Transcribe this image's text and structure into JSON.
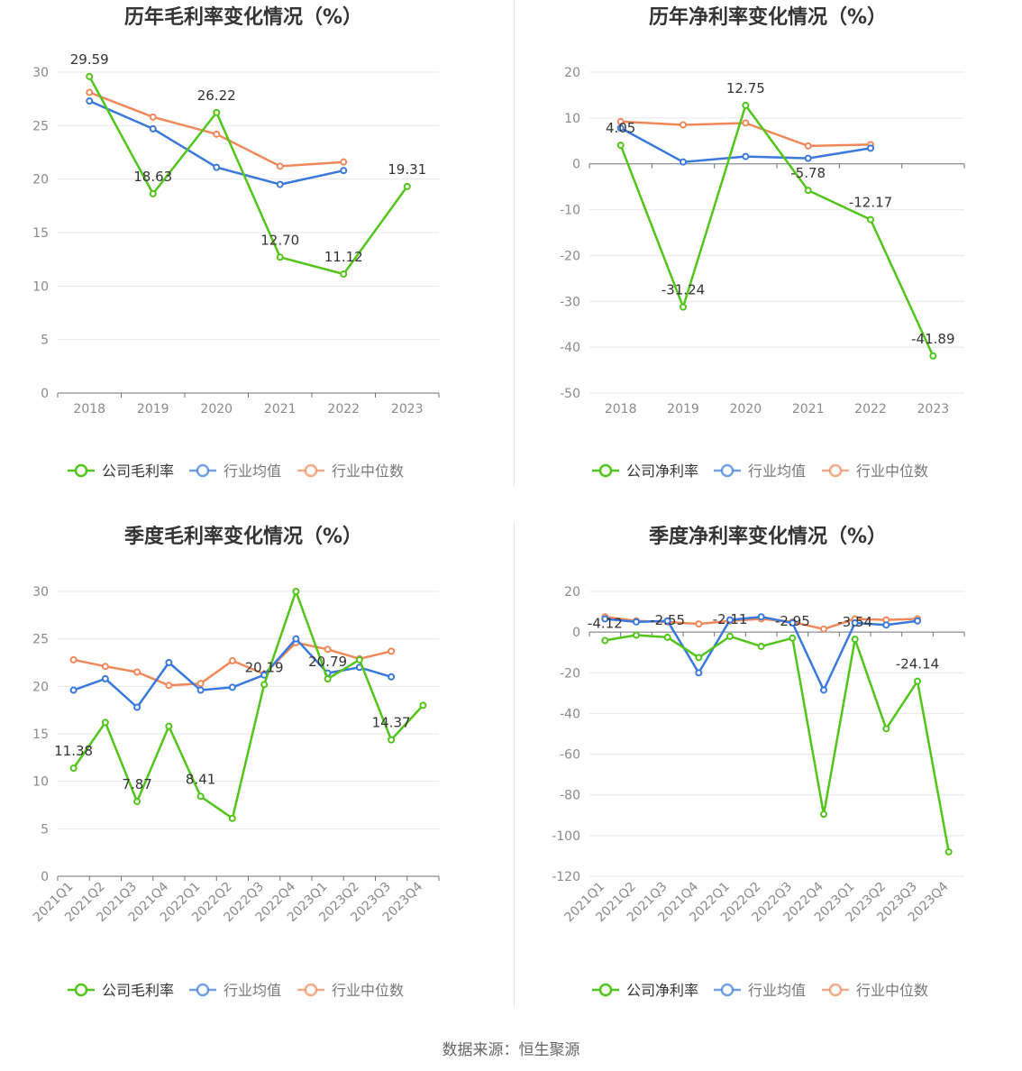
{
  "footer": {
    "source_text": "数据来源：恒生聚源"
  },
  "colors": {
    "company": "#52c41a",
    "industry_avg": "#3a78dc",
    "industry_median": "#f0885a"
  },
  "chart_data": [
    {
      "type": "line",
      "title": "历年毛利率变化情况（%）",
      "categories": [
        "2018",
        "2019",
        "2020",
        "2021",
        "2022",
        "2023"
      ],
      "ylim": [
        0,
        30
      ],
      "yticks": [
        0,
        5,
        10,
        15,
        20,
        25,
        30
      ],
      "rotate_x_labels": false,
      "legend_position": "bottom",
      "series": [
        {
          "name": "公司毛利率",
          "values": [
            29.59,
            18.63,
            26.22,
            12.7,
            11.12,
            19.31
          ],
          "labels": [
            "29.59",
            "18.63",
            "26.22",
            "12.70",
            "11.12",
            "19.31"
          ]
        },
        {
          "name": "行业均值",
          "values": [
            27.3,
            24.7,
            21.1,
            19.5,
            20.8,
            null
          ]
        },
        {
          "name": "行业中位数",
          "values": [
            28.1,
            25.8,
            24.2,
            21.2,
            21.6,
            null
          ]
        }
      ]
    },
    {
      "type": "line",
      "title": "历年净利率变化情况（%）",
      "categories": [
        "2018",
        "2019",
        "2020",
        "2021",
        "2022",
        "2023"
      ],
      "ylim": [
        -50,
        20
      ],
      "yticks": [
        -50,
        -40,
        -30,
        -20,
        -10,
        0,
        10,
        20
      ],
      "rotate_x_labels": false,
      "legend_position": "bottom",
      "series": [
        {
          "name": "公司净利率",
          "values": [
            4.05,
            -31.24,
            12.75,
            -5.78,
            -12.17,
            -41.89
          ],
          "labels": [
            "4.05",
            "-31.24",
            "12.75",
            "-5.78",
            "-12.17",
            "-41.89"
          ]
        },
        {
          "name": "行业均值",
          "values": [
            7.8,
            0.4,
            1.6,
            1.2,
            3.4,
            null
          ]
        },
        {
          "name": "行业中位数",
          "values": [
            9.2,
            8.5,
            8.9,
            3.9,
            4.2,
            null
          ]
        }
      ]
    },
    {
      "type": "line",
      "title": "季度毛利率变化情况（%）",
      "categories": [
        "2021Q1",
        "2021Q2",
        "2021Q3",
        "2021Q4",
        "2022Q1",
        "2022Q2",
        "2022Q3",
        "2022Q4",
        "2023Q1",
        "2023Q2",
        "2023Q3",
        "2023Q4"
      ],
      "ylim": [
        0,
        30
      ],
      "yticks": [
        0,
        5,
        10,
        15,
        20,
        25,
        30
      ],
      "rotate_x_labels": true,
      "legend_position": "bottom",
      "series": [
        {
          "name": "公司毛利率",
          "values": [
            11.38,
            16.2,
            7.87,
            15.8,
            8.41,
            6.1,
            20.19,
            30.0,
            20.79,
            22.8,
            14.37,
            18.0
          ],
          "labels": [
            "11.38",
            null,
            "7.87",
            null,
            "8.41",
            null,
            "20.19",
            null,
            "20.79",
            null,
            "14.37",
            null
          ]
        },
        {
          "name": "行业均值",
          "values": [
            19.6,
            20.8,
            17.8,
            22.5,
            19.6,
            19.9,
            21.2,
            25.0,
            21.4,
            22.0,
            21.0,
            null
          ]
        },
        {
          "name": "行业中位数",
          "values": [
            22.8,
            22.1,
            21.5,
            20.1,
            20.3,
            22.7,
            21.3,
            24.6,
            23.9,
            22.9,
            23.7,
            null
          ]
        }
      ]
    },
    {
      "type": "line",
      "title": "季度净利率变化情况（%）",
      "categories": [
        "2021Q1",
        "2021Q2",
        "2021Q3",
        "2021Q4",
        "2022Q1",
        "2022Q2",
        "2022Q3",
        "2022Q4",
        "2023Q1",
        "2023Q2",
        "2023Q3",
        "2023Q4"
      ],
      "ylim": [
        -120,
        20
      ],
      "yticks": [
        -120,
        -100,
        -80,
        -60,
        -40,
        -20,
        0,
        20
      ],
      "rotate_x_labels": true,
      "legend_position": "bottom",
      "series": [
        {
          "name": "公司净利率",
          "values": [
            -4.12,
            -1.5,
            -2.55,
            -12.5,
            -2.11,
            -7.0,
            -2.95,
            -89.5,
            -3.54,
            -47.5,
            -24.14,
            -108.0
          ],
          "labels": [
            "-4.12",
            null,
            "-2.55",
            null,
            "-2.11",
            null,
            "-2.95",
            null,
            "-3.54",
            null,
            "-24.14",
            null
          ]
        },
        {
          "name": "行业均值",
          "values": [
            6.5,
            5.0,
            5.5,
            -20.0,
            6.0,
            7.5,
            4.5,
            -28.5,
            4.5,
            3.5,
            5.5,
            null
          ]
        },
        {
          "name": "行业中位数",
          "values": [
            7.5,
            5.5,
            5.0,
            4.0,
            5.5,
            6.5,
            5.0,
            1.5,
            6.5,
            6.0,
            6.5,
            null
          ]
        }
      ]
    }
  ]
}
